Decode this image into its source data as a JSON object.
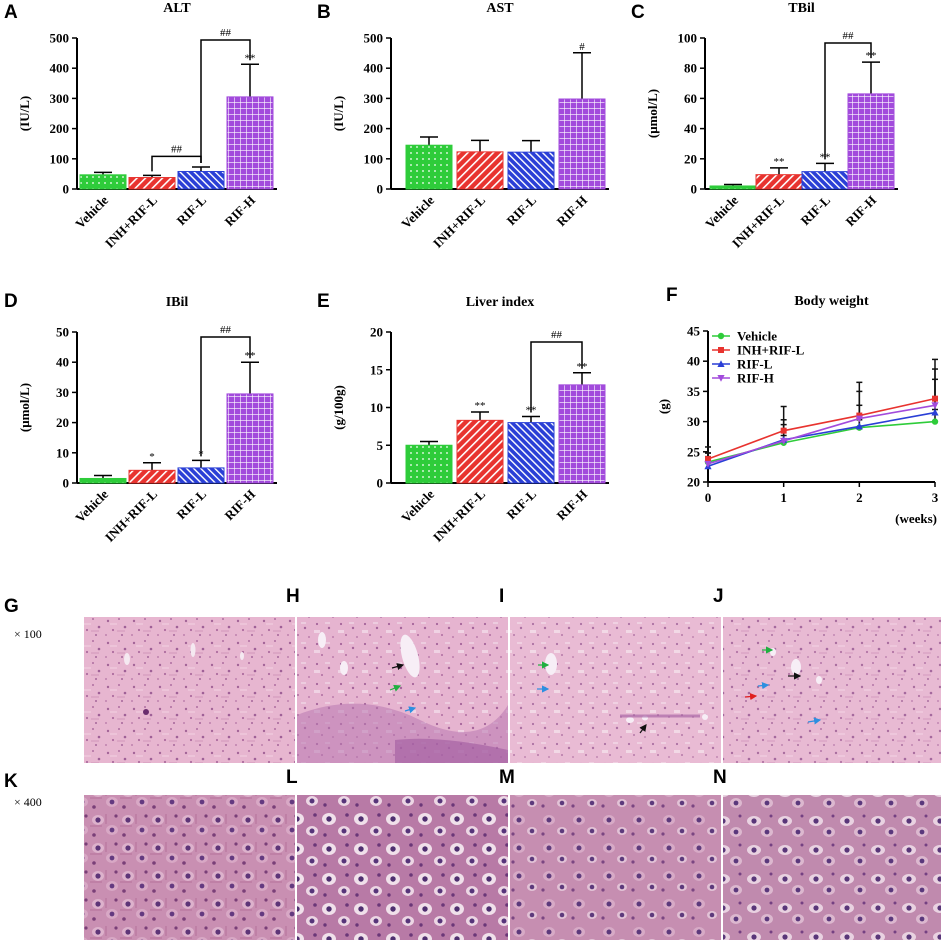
{
  "chart_data": [
    {
      "panel": "A",
      "type": "bar",
      "title": "ALT",
      "ylabel": "(IU/L)",
      "ylim": [
        0,
        500
      ],
      "yticks": [
        0,
        100,
        200,
        300,
        400,
        500
      ],
      "categories": [
        "Vehicle",
        "INH+RIF-L",
        "RIF-L",
        "RIF-H"
      ],
      "values": [
        47,
        38,
        58,
        305
      ],
      "errors": [
        8,
        7,
        15,
        108
      ],
      "significance": [
        "",
        "",
        "",
        "**"
      ],
      "comparisons": [
        {
          "from": 1,
          "to": 2,
          "label": "##"
        },
        {
          "from": 2,
          "to": 3,
          "label": "##"
        }
      ]
    },
    {
      "panel": "B",
      "type": "bar",
      "title": "AST",
      "ylabel": "(IU/L)",
      "ylim": [
        0,
        500
      ],
      "yticks": [
        0,
        100,
        200,
        300,
        400,
        500
      ],
      "categories": [
        "Vehicle",
        "INH+RIF-L",
        "RIF-L",
        "RIF-H"
      ],
      "values": [
        145,
        123,
        122,
        298
      ],
      "errors": [
        27,
        38,
        38,
        153
      ],
      "significance": [
        "",
        "",
        "",
        "#"
      ],
      "comparisons": []
    },
    {
      "panel": "C",
      "type": "bar",
      "title": "TBil",
      "ylabel": "(μmol/L)",
      "ylim": [
        0,
        100
      ],
      "yticks": [
        0,
        20,
        40,
        60,
        80,
        100
      ],
      "categories": [
        "Vehicle",
        "INH+RIF-L",
        "RIF-L",
        "RIF-H"
      ],
      "values": [
        2,
        9.5,
        11.5,
        63
      ],
      "errors": [
        1,
        4.5,
        5.5,
        21
      ],
      "significance": [
        "",
        "**",
        "**",
        "**"
      ],
      "comparisons": [
        {
          "from": 2,
          "to": 3,
          "label": "##"
        }
      ]
    },
    {
      "panel": "D",
      "type": "bar",
      "title": "IBil",
      "ylabel": "(μmol/L)",
      "ylim": [
        0,
        50
      ],
      "yticks": [
        0,
        10,
        20,
        30,
        40,
        50
      ],
      "categories": [
        "Vehicle",
        "INH+RIF-L",
        "RIF-L",
        "RIF-H"
      ],
      "values": [
        1.5,
        4.2,
        5,
        29.5
      ],
      "errors": [
        1,
        2.5,
        2.5,
        10.5
      ],
      "significance": [
        "",
        "*",
        "*",
        "**"
      ],
      "comparisons": [
        {
          "from": 2,
          "to": 3,
          "label": "##"
        }
      ]
    },
    {
      "panel": "E",
      "type": "bar",
      "title": "Liver index",
      "ylabel": "(g/100g)",
      "ylim": [
        0,
        20
      ],
      "yticks": [
        0,
        5,
        10,
        15,
        20
      ],
      "categories": [
        "Vehicle",
        "INH+RIF-L",
        "RIF-L",
        "RIF-H"
      ],
      "values": [
        5,
        8.3,
        8,
        13
      ],
      "errors": [
        0.5,
        1.1,
        0.8,
        1.6
      ],
      "significance": [
        "",
        "**",
        "**",
        "**"
      ],
      "comparisons": [
        {
          "from": 2,
          "to": 3,
          "label": "##"
        }
      ]
    },
    {
      "panel": "F",
      "type": "line",
      "title": "Body weight",
      "ylabel": "(g)",
      "xlabel": "(weeks)",
      "ylim": [
        20,
        45
      ],
      "xlim": [
        0,
        3
      ],
      "yticks": [
        20,
        25,
        30,
        35,
        40,
        45
      ],
      "xticks": [
        0,
        1,
        2,
        3
      ],
      "legend_position": "top-left",
      "series": [
        {
          "name": "Vehicle",
          "marker": "circle",
          "x": [
            0,
            1,
            2,
            3
          ],
          "y": [
            23.3,
            26.5,
            29.0,
            30.0
          ],
          "err": [
            1.5,
            1.2,
            1.3,
            2.0
          ]
        },
        {
          "name": "INH+RIF-L",
          "marker": "square",
          "x": [
            0,
            1,
            2,
            3
          ],
          "y": [
            23.8,
            28.5,
            31.0,
            33.8
          ],
          "err": [
            2.0,
            4.0,
            5.5,
            6.5
          ]
        },
        {
          "name": "RIF-L",
          "marker": "triangle-up",
          "x": [
            0,
            1,
            2,
            3
          ],
          "y": [
            22.6,
            27.0,
            29.2,
            31.5
          ],
          "err": [
            1.6,
            2.5,
            3.5,
            5.5
          ]
        },
        {
          "name": "RIF-H",
          "marker": "triangle-down",
          "x": [
            0,
            1,
            2,
            3
          ],
          "y": [
            23.0,
            26.8,
            30.5,
            32.7
          ],
          "err": [
            1.8,
            3.5,
            4.5,
            6.0
          ]
        }
      ]
    }
  ],
  "histology": {
    "row1_magnification": "× 100",
    "row2_magnification": "× 400",
    "row1_panels": [
      "G",
      "H",
      "I",
      "J"
    ],
    "row2_panels": [
      "K",
      "L",
      "M",
      "N"
    ]
  },
  "colors": {
    "Vehicle": "#2ecc3a",
    "INH+RIF-L": "#e8332f",
    "RIF-L": "#2a3fd6",
    "RIF-H": "#a24bdc",
    "tissue_light": "#e6b4cf",
    "tissue_dark": "#b26198",
    "vessel": "#f7eef6",
    "arrow_black": "#111111",
    "arrow_green": "#1fb040",
    "arrow_blue": "#2c8fe0",
    "arrow_red": "#e02020"
  }
}
